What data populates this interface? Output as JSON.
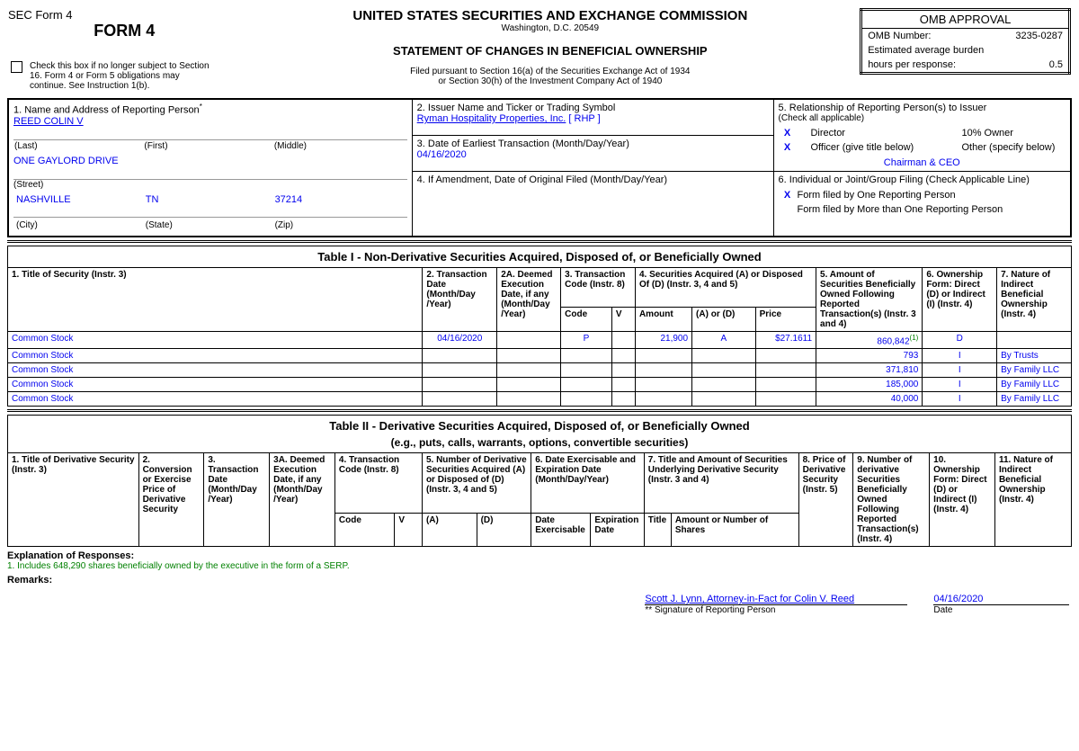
{
  "form_code": "SEC Form 4",
  "form_title": "FORM 4",
  "main_title": "UNITED STATES SECURITIES AND EXCHANGE COMMISSION",
  "address_line": "Washington, D.C. 20549",
  "statement_title": "STATEMENT OF CHANGES IN BENEFICIAL OWNERSHIP",
  "filed_pursuant1": "Filed pursuant to Section 16(a) of the Securities Exchange Act of 1934",
  "filed_pursuant2": "or Section 30(h) of the Investment Company Act of 1940",
  "checkbox_note": "Check this box if no longer subject to Section 16. Form 4 or Form 5 obligations may continue. See Instruction 1(b).",
  "omb": {
    "title": "OMB APPROVAL",
    "number_label": "OMB Number:",
    "number": "3235-0287",
    "burden_label": "Estimated average burden",
    "hours_label": "hours per response:",
    "hours": "0.5"
  },
  "box1": {
    "label": "1. Name and Address of Reporting Person",
    "name": "REED COLIN V",
    "last": "(Last)",
    "first": "(First)",
    "middle": "(Middle)",
    "street1": "ONE GAYLORD DRIVE",
    "street_lbl": "(Street)",
    "city": "NASHVILLE",
    "state": "TN",
    "zip": "37214",
    "city_lbl": "(City)",
    "state_lbl": "(State)",
    "zip_lbl": "(Zip)"
  },
  "box2": {
    "label": "2. Issuer Name and Ticker or Trading Symbol",
    "issuer": "Ryman Hospitality Properties, Inc.",
    "ticker": "RHP"
  },
  "box3": {
    "label": "3. Date of Earliest Transaction (Month/Day/Year)",
    "date": "04/16/2020"
  },
  "box4": {
    "label": "4. If Amendment, Date of Original Filed (Month/Day/Year)"
  },
  "box5": {
    "label": "5. Relationship of Reporting Person(s) to Issuer",
    "sub": "(Check all applicable)",
    "director": "Director",
    "tenpct": "10% Owner",
    "officer": "Officer (give title below)",
    "other": "Other (specify below)",
    "title": "Chairman & CEO",
    "dir_x": "X",
    "off_x": "X"
  },
  "box6": {
    "label": "6. Individual or Joint/Group Filing (Check Applicable Line)",
    "opt1": "Form filed by One Reporting Person",
    "opt2": "Form filed by More than One Reporting Person",
    "x": "X"
  },
  "table1": {
    "caption": "Table I - Non-Derivative Securities Acquired, Disposed of, or Beneficially Owned",
    "h1": "1. Title of Security (Instr. 3)",
    "h2": "2. Transaction Date (Month/Day /Year)",
    "h2a": "2A. Deemed Execution Date, if any (Month/Day /Year)",
    "h3": "3. Transaction Code (Instr. 8)",
    "h4": "4. Securities Acquired (A) or Disposed Of (D) (Instr. 3, 4 and 5)",
    "h5": "5. Amount of Securities Beneficially Owned Following Reported Transaction(s) (Instr. 3 and 4)",
    "h6": "6. Ownership Form: Direct (D) or Indirect (I) (Instr. 4)",
    "h7": "7. Nature of Indirect Beneficial Ownership (Instr. 4)",
    "sub_code": "Code",
    "sub_v": "V",
    "sub_amt": "Amount",
    "sub_ad": "(A) or (D)",
    "sub_price": "Price",
    "rows": [
      {
        "title": "Common Stock",
        "date": "04/16/2020",
        "code": "P",
        "amount": "21,900",
        "ad": "A",
        "price": "$27.1611",
        "owned": "860,842",
        "owned_sup": "(1)",
        "form": "D",
        "nature": ""
      },
      {
        "title": "Common Stock",
        "date": "",
        "code": "",
        "amount": "",
        "ad": "",
        "price": "",
        "owned": "793",
        "form": "I",
        "nature": "By Trusts"
      },
      {
        "title": "Common Stock",
        "date": "",
        "code": "",
        "amount": "",
        "ad": "",
        "price": "",
        "owned": "371,810",
        "form": "I",
        "nature": "By Family LLC"
      },
      {
        "title": "Common Stock",
        "date": "",
        "code": "",
        "amount": "",
        "ad": "",
        "price": "",
        "owned": "185,000",
        "form": "I",
        "nature": "By Family LLC"
      },
      {
        "title": "Common Stock",
        "date": "",
        "code": "",
        "amount": "",
        "ad": "",
        "price": "",
        "owned": "40,000",
        "form": "I",
        "nature": "By Family LLC"
      }
    ]
  },
  "table2": {
    "caption": "Table II - Derivative Securities Acquired, Disposed of, or Beneficially Owned",
    "caption_sub": "(e.g., puts, calls, warrants, options, convertible securities)",
    "h1": "1. Title of Derivative Security (Instr. 3)",
    "h2": "2. Conversion or Exercise Price of Derivative Security",
    "h3": "3. Transaction Date (Month/Day /Year)",
    "h3a": "3A. Deemed Execution Date, if any (Month/Day /Year)",
    "h4": "4. Transaction Code (Instr. 8)",
    "h5": "5. Number of Derivative Securities Acquired (A) or Disposed of (D) (Instr. 3, 4 and 5)",
    "h6": "6. Date Exercisable and Expiration Date (Month/Day/Year)",
    "h7": "7. Title and Amount of Securities Underlying Derivative Security (Instr. 3 and 4)",
    "h8": "8. Price of Derivative Security (Instr. 5)",
    "h9": "9. Number of derivative Securities Beneficially Owned Following Reported Transaction(s) (Instr. 4)",
    "h10": "10. Ownership Form: Direct (D) or Indirect (I) (Instr. 4)",
    "h11": "11. Nature of Indirect Beneficial Ownership (Instr. 4)",
    "sub_code": "Code",
    "sub_v": "V",
    "sub_a": "(A)",
    "sub_d": "(D)",
    "sub_de": "Date Exercisable",
    "sub_exp": "Expiration Date",
    "sub_title": "Title",
    "sub_shares": "Amount or Number of Shares"
  },
  "explanation_label": "Explanation of Responses:",
  "explanation1": "1. Includes 648,290 shares beneficially owned by the executive in the form of a SERP.",
  "remarks": "Remarks:",
  "signature": {
    "name": "Scott J. Lynn, Attorney-in-Fact for Colin V. Reed",
    "sig_lbl": "** Signature of Reporting Person",
    "date": "04/16/2020",
    "date_lbl": "Date"
  }
}
